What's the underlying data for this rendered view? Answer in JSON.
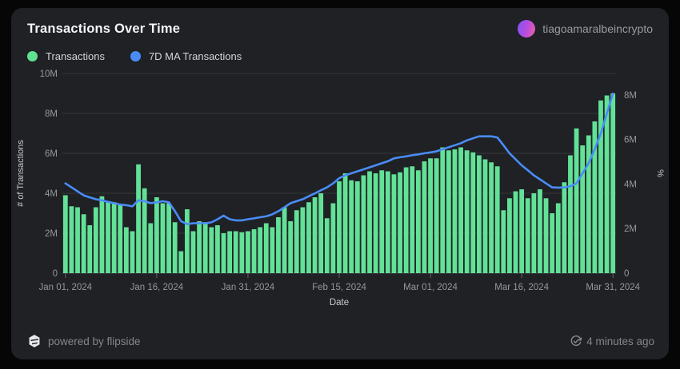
{
  "header": {
    "title": "Transactions Over Time",
    "username": "tiagoamaralbeincrypto"
  },
  "legend": {
    "items": [
      {
        "label": "Transactions",
        "color": "#5fe192"
      },
      {
        "label": "7D MA Transactions",
        "color": "#4a8cf7"
      }
    ]
  },
  "footer": {
    "powered_by": "powered by flipside",
    "last_updated": "4 minutes ago"
  },
  "colors": {
    "page_bg": "#060607",
    "card_bg": "#1f2125",
    "grid": "#36373b",
    "baseline": "#47484c",
    "tick_text": "#96979b",
    "axis_title_text": "#c9cacd",
    "bar": "#62e197",
    "line": "#4a8cf7"
  },
  "chart_data": {
    "type": "bar+line",
    "title": "Transactions Over Time",
    "xlabel": "Date",
    "x_range": {
      "start": "2024-01-01",
      "end": "2024-03-31",
      "step": "1 day"
    },
    "x_tick_labels": [
      "Jan 01, 2024",
      "Jan 16, 2024",
      "Jan 31, 2024",
      "Feb 15, 2024",
      "Mar 01, 2024",
      "Mar 16, 2024",
      "Mar 31, 2024"
    ],
    "x_tick_days": [
      0,
      15,
      30,
      45,
      60,
      75,
      90
    ],
    "left_axis": {
      "label": "# of Transactions",
      "unit": "millions",
      "ticks": [
        "0",
        "2M",
        "4M",
        "6M",
        "8M",
        "10M"
      ],
      "tick_values": [
        0,
        2,
        4,
        6,
        8,
        10
      ],
      "max": 10
    },
    "right_axis": {
      "label": "%",
      "ticks": [
        "0",
        "2M",
        "4M",
        "6M",
        "8M"
      ],
      "tick_values": [
        0,
        2,
        4,
        6,
        8
      ],
      "max": 8.96
    },
    "series": [
      {
        "name": "Transactions",
        "type": "bar",
        "axis": "left",
        "color": "#62e197",
        "unit": "millions",
        "values": [
          3.9,
          3.35,
          3.3,
          2.95,
          2.4,
          3.3,
          3.85,
          3.55,
          3.55,
          3.4,
          2.3,
          2.1,
          5.45,
          4.25,
          2.5,
          3.8,
          3.5,
          3.5,
          2.55,
          1.1,
          3.2,
          2.1,
          2.6,
          2.55,
          2.3,
          2.4,
          2.0,
          2.1,
          2.1,
          2.05,
          2.1,
          2.2,
          2.3,
          2.5,
          2.3,
          2.8,
          3.3,
          2.6,
          3.15,
          3.3,
          3.55,
          3.8,
          4.0,
          2.75,
          3.5,
          4.6,
          5.0,
          4.65,
          4.6,
          4.9,
          5.1,
          5.0,
          5.15,
          5.1,
          4.95,
          5.05,
          5.3,
          5.35,
          5.15,
          5.6,
          5.75,
          5.75,
          6.3,
          6.15,
          6.2,
          6.3,
          6.15,
          6.05,
          5.9,
          5.7,
          5.55,
          5.35,
          3.15,
          3.75,
          4.1,
          4.2,
          3.75,
          4.0,
          4.2,
          3.75,
          3.0,
          3.5,
          4.55,
          5.9,
          7.25,
          6.4,
          6.9,
          7.6,
          8.65,
          8.9,
          9.0
        ]
      },
      {
        "name": "7D MA Transactions",
        "type": "line",
        "axis": "right",
        "color": "#4a8cf7",
        "unit": "millions",
        "values": [
          4.03,
          3.85,
          3.67,
          3.49,
          3.4,
          3.32,
          3.27,
          3.2,
          3.14,
          3.08,
          3.05,
          3.0,
          3.27,
          3.23,
          3.14,
          3.18,
          3.23,
          3.18,
          2.78,
          2.33,
          2.2,
          2.24,
          2.24,
          2.24,
          2.28,
          2.42,
          2.58,
          2.42,
          2.37,
          2.37,
          2.42,
          2.46,
          2.51,
          2.55,
          2.64,
          2.78,
          2.96,
          3.14,
          3.23,
          3.32,
          3.45,
          3.58,
          3.72,
          3.85,
          4.03,
          4.26,
          4.39,
          4.48,
          4.57,
          4.66,
          4.75,
          4.84,
          4.93,
          5.02,
          5.15,
          5.2,
          5.24,
          5.29,
          5.33,
          5.38,
          5.42,
          5.47,
          5.56,
          5.65,
          5.74,
          5.83,
          5.96,
          6.05,
          6.14,
          6.14,
          6.14,
          6.09,
          5.74,
          5.38,
          5.11,
          4.84,
          4.62,
          4.39,
          4.21,
          4.03,
          3.85,
          3.84,
          3.85,
          3.9,
          4.03,
          4.48,
          4.93,
          5.56,
          6.27,
          7.17,
          8.06
        ]
      }
    ]
  }
}
